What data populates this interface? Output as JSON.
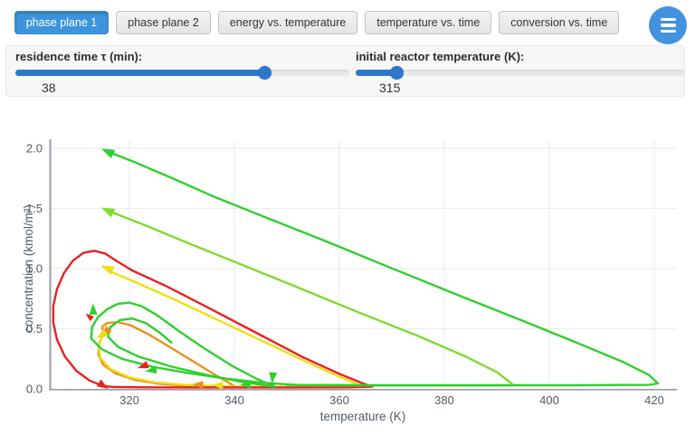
{
  "tabs": {
    "items": [
      {
        "label": "phase plane 1",
        "active": true
      },
      {
        "label": "phase plane 2",
        "active": false
      },
      {
        "label": "energy vs. temperature",
        "active": false
      },
      {
        "label": "temperature vs. time",
        "active": false
      },
      {
        "label": "conversion vs. time",
        "active": false
      }
    ]
  },
  "menu_button": {
    "icon": "hamburger-icon"
  },
  "controls": {
    "sliders": [
      {
        "label": "residence time τ (min):",
        "value": "38",
        "fill_pct": 74.8
      },
      {
        "label": "initial reactor temperature (K):",
        "value": "315",
        "fill_pct": 12.7
      }
    ]
  },
  "colors": {
    "accent_blue": "#3e94da",
    "slider_blue": "#2e77cd",
    "grid": "#ededf0",
    "axis": "#9a9aa2",
    "tick_text": "#525a66"
  },
  "chart_data": {
    "type": "line",
    "title": "",
    "xlabel": "temperature (K)",
    "ylabel": "concentration (kmol/m³)",
    "xlim": [
      304.9,
      423.8
    ],
    "ylim": [
      0,
      2.04
    ],
    "x_ticks": [
      320,
      340,
      360,
      380,
      400,
      420
    ],
    "y_ticks": [
      0.0,
      0.5,
      1.0,
      1.5,
      2.0
    ],
    "y_tick_labels": [
      "0.0",
      "0.5",
      "1.0",
      "1.5",
      "2.0"
    ],
    "grid": true,
    "legend": "none",
    "series": [
      {
        "name": "trajectory-orange-inner-loop",
        "color": "#ef8e1f",
        "points": [
          [
            315.1,
            0.465
          ],
          [
            314.8,
            0.515
          ],
          [
            315.8,
            0.548
          ],
          [
            317.8,
            0.556
          ],
          [
            320.3,
            0.528
          ],
          [
            323.8,
            0.45
          ],
          [
            327.8,
            0.345
          ],
          [
            332.3,
            0.225
          ],
          [
            336.6,
            0.11
          ],
          [
            339.4,
            0.04
          ],
          [
            339.9,
            0.022
          ],
          [
            336.5,
            0.02
          ],
          [
            331,
            0.025
          ],
          [
            325.7,
            0.042
          ],
          [
            321,
            0.075
          ],
          [
            317.4,
            0.128
          ],
          [
            315,
            0.2
          ],
          [
            314.1,
            0.285
          ],
          [
            314.2,
            0.375
          ],
          [
            315.1,
            0.465
          ]
        ]
      },
      {
        "name": "trajectory-yellow-c0-1.0",
        "color": "#ecdf12",
        "points": [
          [
            315.9,
            0.985
          ],
          [
            321,
            0.89
          ],
          [
            328,
            0.755
          ],
          [
            336,
            0.59
          ],
          [
            344.5,
            0.415
          ],
          [
            352.5,
            0.25
          ],
          [
            359,
            0.12
          ],
          [
            363.4,
            0.04
          ],
          [
            365,
            0.02
          ],
          [
            359,
            0.017
          ],
          [
            350,
            0.017
          ],
          [
            342,
            0.019
          ],
          [
            337,
            0.023
          ],
          [
            330.5,
            0.033
          ],
          [
            324.8,
            0.055
          ],
          [
            319.9,
            0.098
          ],
          [
            316.4,
            0.165
          ],
          [
            314.5,
            0.255
          ],
          [
            314.1,
            0.35
          ],
          [
            314.7,
            0.43
          ]
        ]
      },
      {
        "name": "trajectory-red-outer-loop",
        "color": "#ea2020",
        "points": [
          [
            314.9,
            0.025
          ],
          [
            312.4,
            0.07
          ],
          [
            309.9,
            0.15
          ],
          [
            307.7,
            0.27
          ],
          [
            306.2,
            0.41
          ],
          [
            305.5,
            0.55
          ],
          [
            305.5,
            0.69
          ],
          [
            306.2,
            0.83
          ],
          [
            307.5,
            0.96
          ],
          [
            309.2,
            1.065
          ],
          [
            311.2,
            1.13
          ],
          [
            313.3,
            1.148
          ],
          [
            315.4,
            1.125
          ],
          [
            317.5,
            1.065
          ],
          [
            320.5,
            0.985
          ],
          [
            327,
            0.855
          ],
          [
            335,
            0.675
          ],
          [
            344,
            0.47
          ],
          [
            353,
            0.265
          ],
          [
            360,
            0.125
          ],
          [
            364.5,
            0.045
          ],
          [
            366.3,
            0.018
          ],
          [
            362,
            0.013
          ],
          [
            354,
            0.012
          ],
          [
            344,
            0.012
          ],
          [
            333,
            0.012
          ],
          [
            323,
            0.013
          ],
          [
            317,
            0.016
          ],
          [
            314.9,
            0.025
          ]
        ]
      },
      {
        "name": "trajectory-lightgreen-c0-1.5",
        "color": "#7ddb2f",
        "points": [
          [
            316,
            1.48
          ],
          [
            323,
            1.36
          ],
          [
            331,
            1.215
          ],
          [
            341,
            1.04
          ],
          [
            352,
            0.845
          ],
          [
            364,
            0.63
          ],
          [
            375,
            0.44
          ],
          [
            384,
            0.27
          ],
          [
            390,
            0.14
          ],
          [
            392.8,
            0.045
          ],
          [
            393.2,
            0.03
          ],
          [
            389,
            0.028
          ],
          [
            380,
            0.028
          ],
          [
            368,
            0.028
          ],
          [
            357,
            0.03
          ],
          [
            350,
            0.033
          ]
        ]
      },
      {
        "name": "trajectory-green-c0-2.0",
        "color": "#2fcf2f",
        "points": [
          [
            316,
            1.97
          ],
          [
            321,
            1.885
          ],
          [
            328,
            1.755
          ],
          [
            336,
            1.6
          ],
          [
            346,
            1.425
          ],
          [
            357,
            1.235
          ],
          [
            369,
            1.02
          ],
          [
            382,
            0.79
          ],
          [
            395,
            0.565
          ],
          [
            406,
            0.37
          ],
          [
            414,
            0.225
          ],
          [
            419,
            0.115
          ],
          [
            420.7,
            0.045
          ],
          [
            419,
            0.033
          ],
          [
            405,
            0.03
          ],
          [
            385,
            0.03
          ],
          [
            365,
            0.03
          ],
          [
            352,
            0.033
          ],
          [
            348.5,
            0.042
          ],
          [
            344.5,
            0.055
          ],
          [
            338,
            0.088
          ],
          [
            331,
            0.133
          ],
          [
            324.5,
            0.183
          ],
          [
            318.6,
            0.25
          ],
          [
            314.7,
            0.33
          ],
          [
            312.7,
            0.42
          ],
          [
            312.9,
            0.515
          ],
          [
            314,
            0.595
          ],
          [
            315.7,
            0.66
          ],
          [
            317.8,
            0.707
          ],
          [
            320,
            0.717
          ],
          [
            322.3,
            0.688
          ],
          [
            325.3,
            0.612
          ],
          [
            329.3,
            0.485
          ],
          [
            334.3,
            0.335
          ],
          [
            339.6,
            0.19
          ],
          [
            344.3,
            0.083
          ],
          [
            347,
            0.032
          ],
          [
            347.7,
            0.018
          ],
          [
            345.8,
            0.03
          ],
          [
            341,
            0.062
          ],
          [
            334.5,
            0.118
          ],
          [
            327.8,
            0.188
          ],
          [
            321.8,
            0.268
          ],
          [
            317.8,
            0.35
          ],
          [
            315.9,
            0.435
          ],
          [
            316.4,
            0.515
          ],
          [
            318.2,
            0.572
          ],
          [
            320.6,
            0.585
          ],
          [
            323.2,
            0.545
          ],
          [
            326,
            0.46
          ],
          [
            328,
            0.385
          ]
        ]
      }
    ],
    "direction_markers": [
      {
        "t": 316.0,
        "c": 1.97,
        "angle": 205,
        "color": "#2fcf2f",
        "size": 1.15
      },
      {
        "t": 316.0,
        "c": 1.48,
        "angle": 205,
        "color": "#7ddb2f",
        "size": 1.15
      },
      {
        "t": 315.9,
        "c": 1.0,
        "angle": 203,
        "color": "#ecdf12",
        "size": 1.15
      },
      {
        "t": 313.1,
        "c": 0.655,
        "angle": 268,
        "color": "#2fcf2f",
        "size": 1.0
      },
      {
        "t": 312.4,
        "c": 0.6,
        "angle": 220,
        "color": "#ea2020",
        "size": 0.75
      },
      {
        "t": 315.5,
        "c": 0.475,
        "angle": 138,
        "color": "#ef8e1f",
        "size": 1.0
      },
      {
        "t": 314.8,
        "c": 0.45,
        "angle": 148,
        "color": "#ecdf12",
        "size": 1.0
      },
      {
        "t": 322.7,
        "c": 0.19,
        "angle": 160,
        "color": "#ea2020",
        "size": 0.95
      },
      {
        "t": 324.3,
        "c": 0.155,
        "angle": 172,
        "color": "#2fcf2f",
        "size": 1.0
      },
      {
        "t": 333.2,
        "c": 0.035,
        "angle": 183,
        "color": "#ef8e1f",
        "size": 0.95
      },
      {
        "t": 337.0,
        "c": 0.03,
        "angle": 183,
        "color": "#ecdf12",
        "size": 0.95
      },
      {
        "t": 342.3,
        "c": 0.035,
        "angle": 180,
        "color": "#2fcf2f",
        "size": 0.95
      },
      {
        "t": 347.3,
        "c": 0.1,
        "angle": 95,
        "color": "#2fcf2f",
        "size": 1.0
      },
      {
        "t": 314.9,
        "c": 0.03,
        "angle": 32,
        "color": "#ea2020",
        "size": 1.0
      }
    ]
  }
}
